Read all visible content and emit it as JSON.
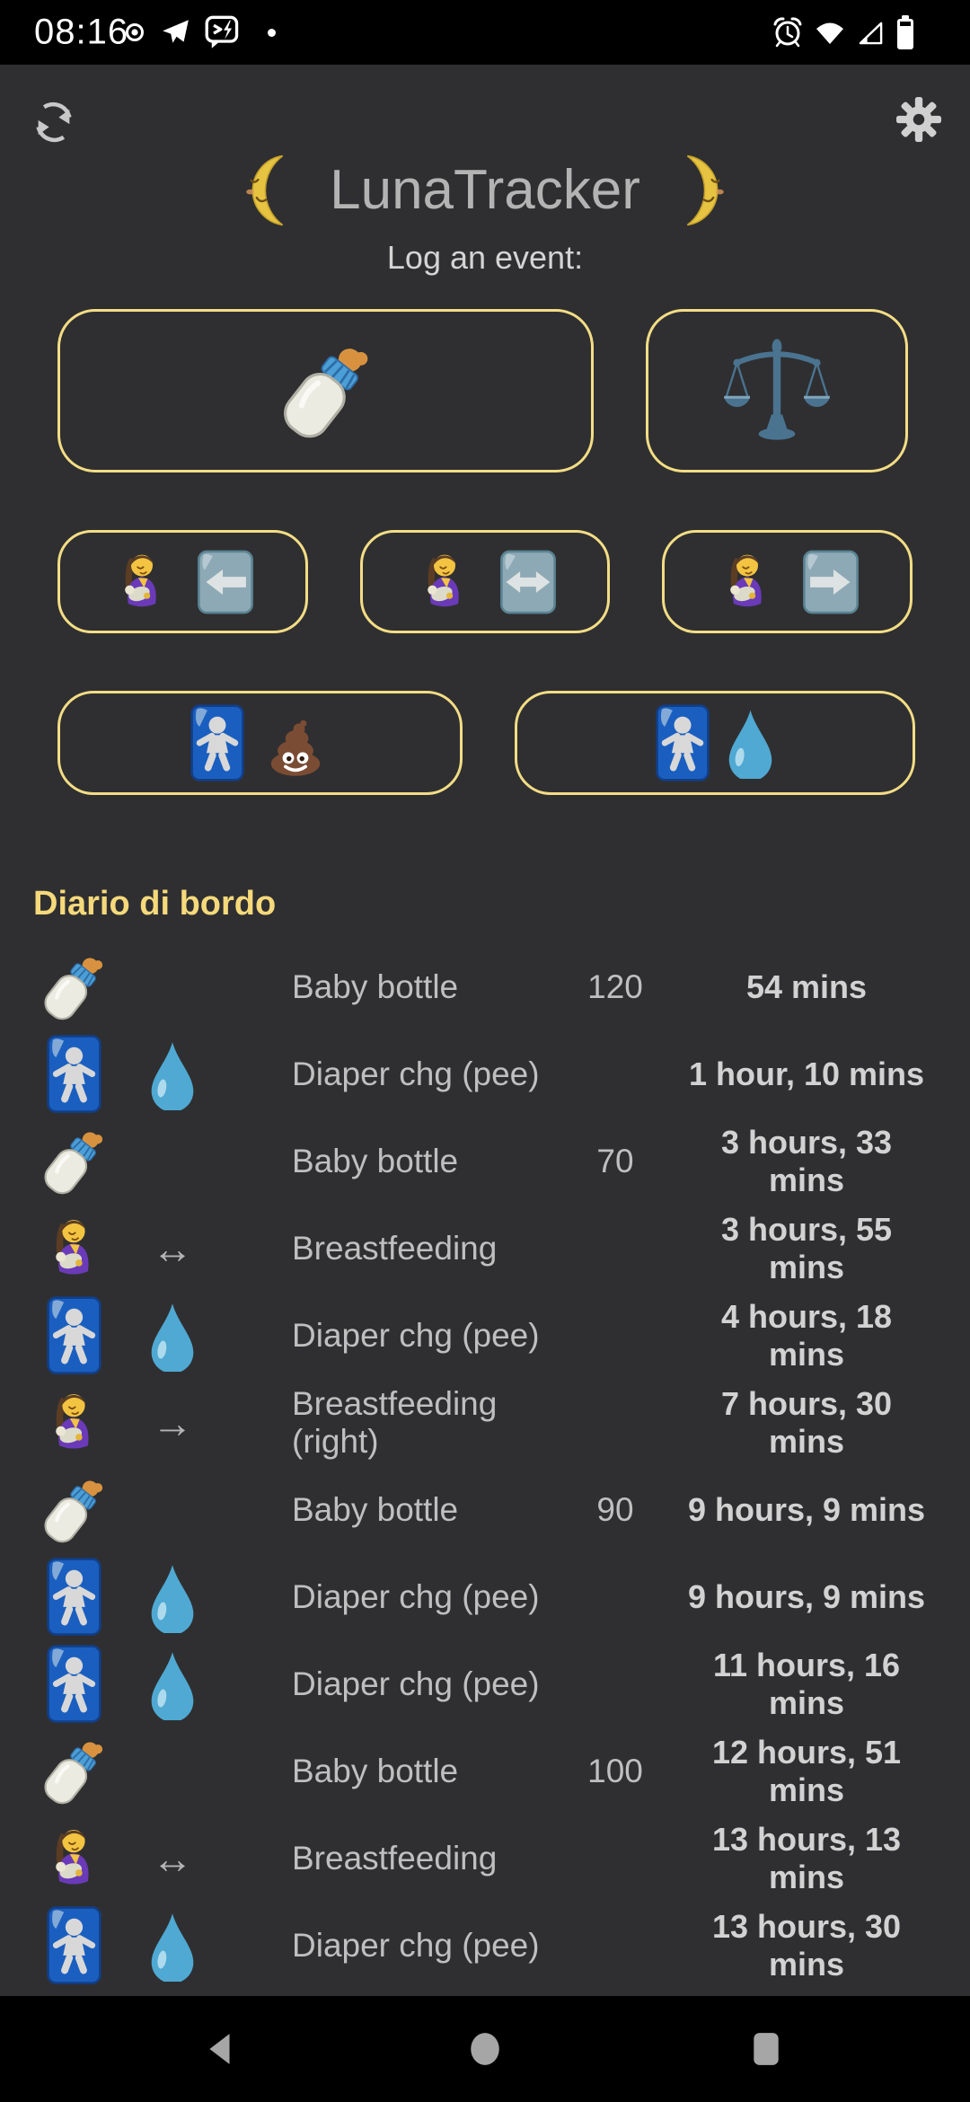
{
  "status_bar": {
    "time": "08:16",
    "left_icons": [
      "record-dot-icon",
      "telegram-icon",
      "sms-lightning-icon",
      "notification-dot"
    ],
    "right_icons": [
      "alarm-icon",
      "wifi-icon",
      "cell-signal-icon",
      "battery-icon"
    ]
  },
  "header": {
    "moon_left_icon": "crescent-moon-face-left",
    "title": "LunaTracker",
    "moon_right_icon": "crescent-moon-face-right",
    "subtitle": "Log an event:",
    "refresh_icon": "sync-icon",
    "settings_icon": "gear-icon"
  },
  "event_buttons": [
    {
      "id": "log-baby-bottle",
      "icons": [
        "baby-bottle"
      ]
    },
    {
      "id": "log-weighing",
      "icons": [
        "balance-scale"
      ]
    },
    {
      "id": "log-breastfeeding-left",
      "icons": [
        "breastfeeding",
        "arrow-left-button"
      ]
    },
    {
      "id": "log-breastfeeding-both",
      "icons": [
        "breastfeeding",
        "arrow-both-button"
      ]
    },
    {
      "id": "log-breastfeeding-right",
      "icons": [
        "breastfeeding",
        "arrow-right-button"
      ]
    },
    {
      "id": "log-diaper-poo",
      "icons": [
        "baby-symbol",
        "poop"
      ]
    },
    {
      "id": "log-diaper-pee",
      "icons": [
        "baby-symbol",
        "droplet"
      ]
    }
  ],
  "log": {
    "heading": "Diario di bordo",
    "entries": [
      {
        "icon": "baby-bottle",
        "icon2": "",
        "arrow": "",
        "label": "Baby bottle",
        "quantity": "120",
        "time": "54 mins"
      },
      {
        "icon": "baby-symbol",
        "icon2": "droplet",
        "arrow": "",
        "label": "Diaper chg (pee)",
        "quantity": "",
        "time": "1 hour, 10 mins"
      },
      {
        "icon": "baby-bottle",
        "icon2": "",
        "arrow": "",
        "label": "Baby bottle",
        "quantity": "70",
        "time": "3 hours, 33 mins"
      },
      {
        "icon": "breastfeeding",
        "icon2": "",
        "arrow": "↔",
        "label": "Breastfeeding",
        "quantity": "",
        "time": "3 hours, 55 mins"
      },
      {
        "icon": "baby-symbol",
        "icon2": "droplet",
        "arrow": "",
        "label": "Diaper chg (pee)",
        "quantity": "",
        "time": "4 hours, 18 mins"
      },
      {
        "icon": "breastfeeding",
        "icon2": "",
        "arrow": "→",
        "label": "Breastfeeding (right)",
        "quantity": "",
        "time": "7 hours, 30 mins"
      },
      {
        "icon": "baby-bottle",
        "icon2": "",
        "arrow": "",
        "label": "Baby bottle",
        "quantity": "90",
        "time": "9 hours, 9 mins"
      },
      {
        "icon": "baby-symbol",
        "icon2": "droplet",
        "arrow": "",
        "label": "Diaper chg (pee)",
        "quantity": "",
        "time": "9 hours, 9 mins"
      },
      {
        "icon": "baby-symbol",
        "icon2": "droplet",
        "arrow": "",
        "label": "Diaper chg (pee)",
        "quantity": "",
        "time": "11 hours, 16 mins"
      },
      {
        "icon": "baby-bottle",
        "icon2": "",
        "arrow": "",
        "label": "Baby bottle",
        "quantity": "100",
        "time": "12 hours, 51 mins"
      },
      {
        "icon": "breastfeeding",
        "icon2": "",
        "arrow": "↔",
        "label": "Breastfeeding",
        "quantity": "",
        "time": "13 hours, 13 mins"
      },
      {
        "icon": "baby-symbol",
        "icon2": "droplet",
        "arrow": "",
        "label": "Diaper chg (pee)",
        "quantity": "",
        "time": "13 hours, 30 mins"
      }
    ]
  },
  "nav_bar": {
    "icons": [
      "back",
      "home",
      "recents"
    ]
  },
  "colors": {
    "background": "#2f2f31",
    "system_bars": "#000000",
    "button_border": "#f3dd85",
    "heading": "#f5d97b",
    "title_text": "#b3b3b3",
    "body_text": "#bfbfbf",
    "time_text": "#d2d2d2"
  }
}
